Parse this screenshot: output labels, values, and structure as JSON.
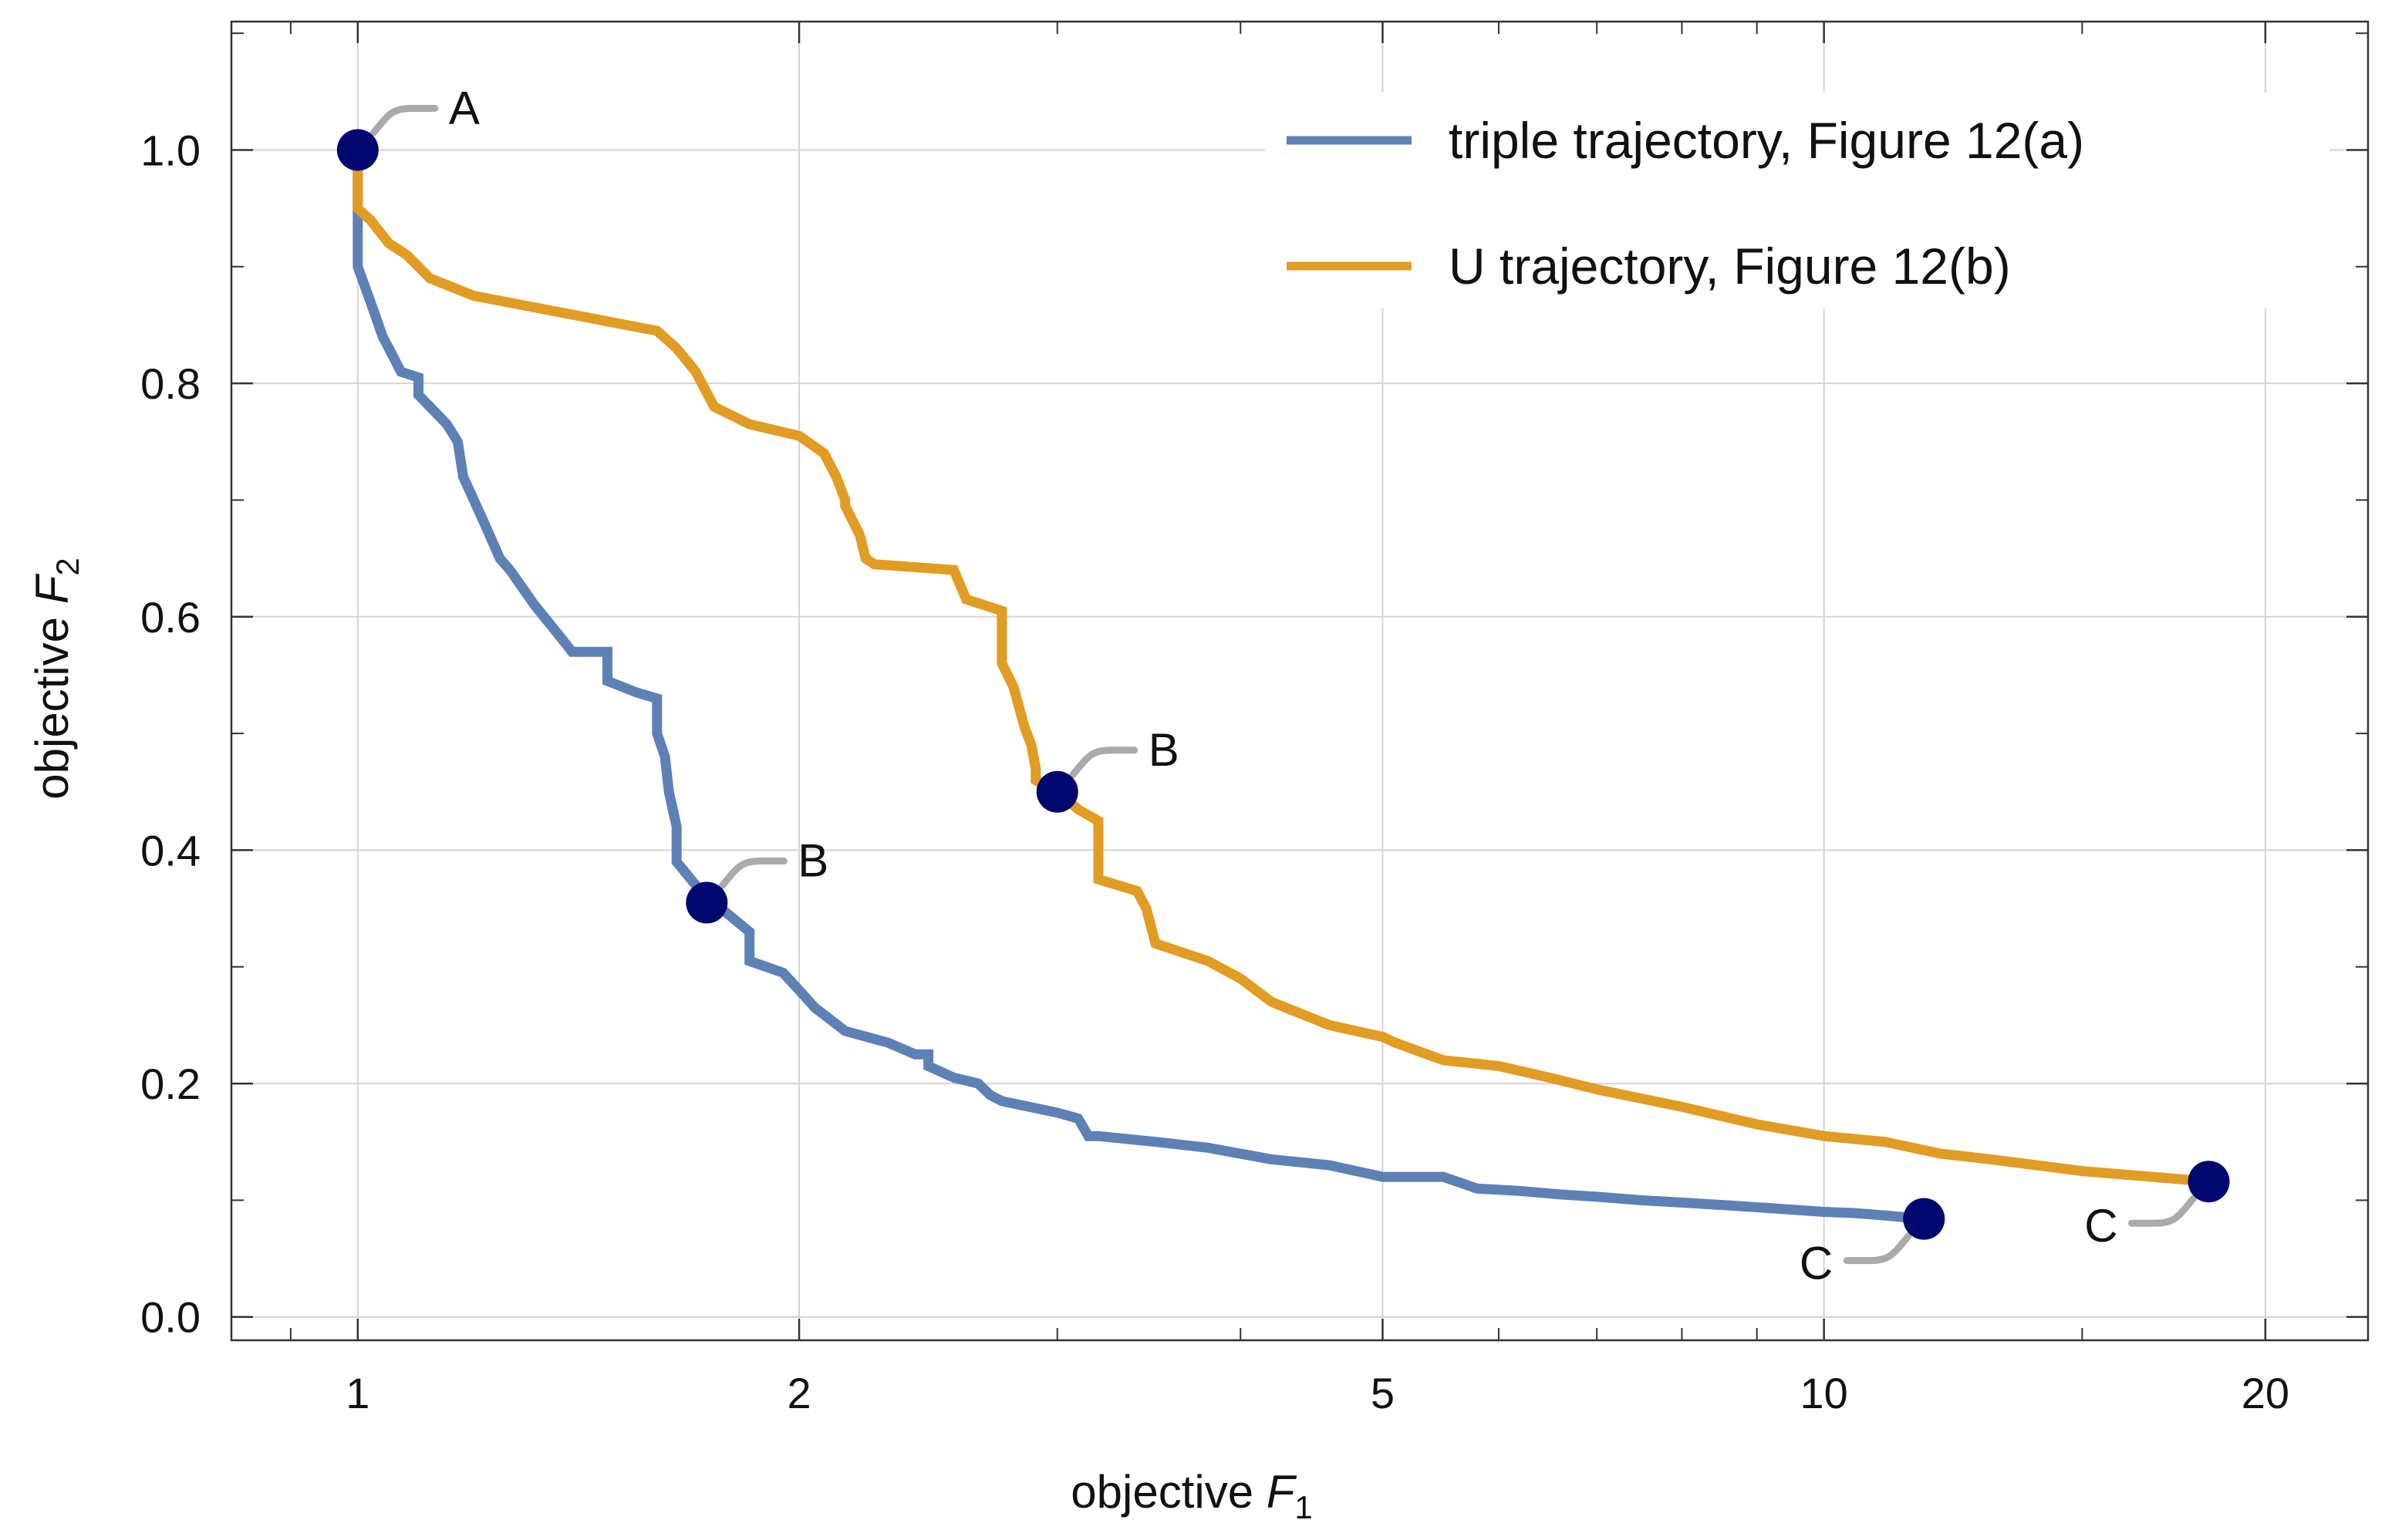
{
  "chart_data": {
    "type": "line",
    "x_scale": "log",
    "xlabel": {
      "text": "objective ",
      "var": "F",
      "sub": "1"
    },
    "ylabel": {
      "text": "objective ",
      "var": "F",
      "sub": "2"
    },
    "xlim": [
      0.82,
      23.5
    ],
    "ylim": [
      -0.02,
      1.11
    ],
    "x_ticks": [
      {
        "value": 1,
        "label": "1"
      },
      {
        "value": 2,
        "label": "2"
      },
      {
        "value": 5,
        "label": "5"
      },
      {
        "value": 10,
        "label": "10"
      },
      {
        "value": 20,
        "label": "20"
      }
    ],
    "x_minor_ticks": [
      0.9,
      3,
      4,
      6,
      7,
      8,
      9,
      15
    ],
    "y_ticks": [
      {
        "value": 0.0,
        "label": "0.0"
      },
      {
        "value": 0.2,
        "label": "0.2"
      },
      {
        "value": 0.4,
        "label": "0.4"
      },
      {
        "value": 0.6,
        "label": "0.6"
      },
      {
        "value": 0.8,
        "label": "0.8"
      },
      {
        "value": 1.0,
        "label": "1.0"
      }
    ],
    "y_minor_ticks": [
      0.1,
      0.3,
      0.5,
      0.7,
      0.9,
      1.1
    ],
    "grid": true,
    "legend_position": "top-right",
    "series": [
      {
        "name": "triple trajectory, Figure 12(a)",
        "color": "#5E81B5",
        "x": [
          1.0,
          1.0,
          1.02,
          1.04,
          1.05,
          1.07,
          1.1,
          1.1,
          1.13,
          1.15,
          1.17,
          1.18,
          1.2,
          1.22,
          1.25,
          1.27,
          1.32,
          1.38,
          1.4,
          1.48,
          1.48,
          1.55,
          1.6,
          1.6,
          1.62,
          1.63,
          1.65,
          1.65,
          1.7,
          1.75,
          1.85,
          1.85,
          1.95,
          2.0,
          2.05,
          2.15,
          2.3,
          2.4,
          2.45,
          2.45,
          2.55,
          2.65,
          2.7,
          2.75,
          3.0,
          3.1,
          3.15,
          3.2,
          3.5,
          3.8,
          4.2,
          4.6,
          5.0,
          5.5,
          5.8,
          6.2,
          6.6,
          7.0,
          7.5,
          8.0,
          8.5,
          9.0,
          10.0,
          10.5,
          11.0,
          11.7
        ],
        "y": [
          1.0,
          0.9,
          0.87,
          0.84,
          0.83,
          0.81,
          0.805,
          0.79,
          0.775,
          0.765,
          0.75,
          0.72,
          0.7,
          0.68,
          0.65,
          0.64,
          0.61,
          0.58,
          0.57,
          0.57,
          0.545,
          0.535,
          0.53,
          0.5,
          0.48,
          0.45,
          0.42,
          0.39,
          0.37,
          0.355,
          0.33,
          0.305,
          0.295,
          0.28,
          0.265,
          0.245,
          0.235,
          0.225,
          0.225,
          0.215,
          0.205,
          0.2,
          0.19,
          0.185,
          0.175,
          0.17,
          0.155,
          0.155,
          0.15,
          0.145,
          0.135,
          0.13,
          0.12,
          0.12,
          0.11,
          0.108,
          0.105,
          0.103,
          0.1,
          0.098,
          0.096,
          0.094,
          0.09,
          0.089,
          0.087,
          0.084
        ]
      },
      {
        "name": "U trajectory, Figure 12(b)",
        "color": "#E19C24",
        "x": [
          1.0,
          1.0,
          1.02,
          1.05,
          1.08,
          1.1,
          1.12,
          1.2,
          1.6,
          1.65,
          1.7,
          1.75,
          1.85,
          2.0,
          2.08,
          2.12,
          2.15,
          2.15,
          2.2,
          2.22,
          2.25,
          2.55,
          2.6,
          2.75,
          2.75,
          2.8,
          2.85,
          2.88,
          2.9,
          2.9,
          3.0,
          3.1,
          3.2,
          3.2,
          3.4,
          3.45,
          3.5,
          3.8,
          4.0,
          4.2,
          4.6,
          5.0,
          5.1,
          5.5,
          6.0,
          6.5,
          7.0,
          8.0,
          9.0,
          10.0,
          11.0,
          12.0,
          13.0,
          15.0,
          18.3
        ],
        "y": [
          1.0,
          0.95,
          0.94,
          0.92,
          0.91,
          0.9,
          0.89,
          0.875,
          0.845,
          0.83,
          0.81,
          0.78,
          0.765,
          0.755,
          0.74,
          0.72,
          0.7,
          0.695,
          0.67,
          0.65,
          0.645,
          0.64,
          0.615,
          0.605,
          0.56,
          0.54,
          0.505,
          0.49,
          0.47,
          0.46,
          0.45,
          0.435,
          0.425,
          0.375,
          0.365,
          0.35,
          0.32,
          0.305,
          0.29,
          0.27,
          0.25,
          0.24,
          0.235,
          0.22,
          0.215,
          0.205,
          0.195,
          0.18,
          0.165,
          0.155,
          0.15,
          0.14,
          0.135,
          0.125,
          0.116
        ]
      }
    ],
    "points": [
      {
        "label": "A",
        "x": 1.0,
        "y": 1.0,
        "callout": "up-right"
      },
      {
        "label": "B",
        "x": 1.73,
        "y": 0.355,
        "callout": "up-right"
      },
      {
        "label": "B",
        "x": 3.0,
        "y": 0.45,
        "callout": "up-right"
      },
      {
        "label": "C",
        "x": 11.7,
        "y": 0.084,
        "callout": "down-left"
      },
      {
        "label": "C",
        "x": 18.3,
        "y": 0.116,
        "callout": "down-left"
      }
    ],
    "point_color": "#00076E",
    "callout_color": "#AAAAAA",
    "grid_color": "#D4D4D4",
    "frame_color": "#333333"
  }
}
